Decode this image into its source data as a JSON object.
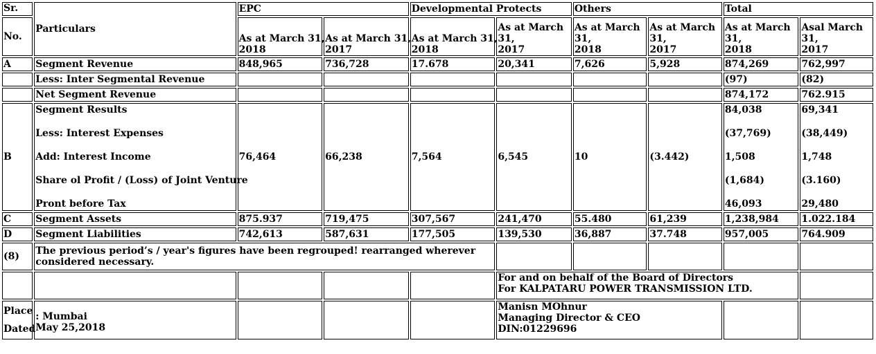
{
  "header": {
    "sr": "Sr.",
    "no": "No.",
    "particulars": "Particulars",
    "groups": [
      "EPC",
      "Developmental Protects",
      "Others",
      "Total"
    ],
    "cols": [
      [
        "As at March 31,",
        "2018"
      ],
      [
        "As at March 31,",
        "2017"
      ],
      [
        "As at March 31,",
        "2018"
      ],
      [
        "As at March",
        "31,",
        "2017"
      ],
      [
        "As at March",
        "31,",
        "2018"
      ],
      [
        "As at March",
        "31,",
        "2017"
      ],
      [
        "As at March",
        "31,",
        "2018"
      ],
      [
        "Asal March",
        "31,",
        "2017"
      ]
    ]
  },
  "rows": {
    "a": {
      "sr": "A",
      "label": "Segment Revenue",
      "values": [
        "848,965",
        "736,728",
        "17.678",
        "20,341",
        "7,626",
        "5,928",
        "874,269",
        "762,997"
      ]
    },
    "inter": {
      "label": "Less: Inter Segmental Revenue",
      "total_2018": "(97)",
      "total_2017": "(82)"
    },
    "net": {
      "label": "Net Segment Revenue",
      "total_2018": "874,172",
      "total_2017": "762.915"
    },
    "b": {
      "sr": "B",
      "labels": [
        "Segment Results",
        "Less: Interest Expenses",
        "Add: Interest Income",
        "Share ol Profit / (Loss) of Joint Venture",
        "Pront before Tax"
      ],
      "values": [
        "76,464",
        "66,238",
        "7,564",
        "6,545",
        "10",
        "(3.442)"
      ],
      "total_2018": [
        "84,038",
        "(37,769)",
        "1,508",
        "(1,684)",
        "46,093"
      ],
      "total_2017": [
        "69,341",
        "(38,449)",
        "1,748",
        "(3.160)",
        "29,480"
      ]
    },
    "c": {
      "sr": "C",
      "label": "Segment Assets",
      "values": [
        "875.937",
        "719,475",
        "307,567",
        "241,470",
        "55.480",
        "61,239",
        "1,238,984",
        "1.022.184"
      ]
    },
    "d": {
      "sr": "D",
      "label": "Segment Liabilities",
      "values": [
        "742,613",
        "587,631",
        "177,505",
        "139,530",
        "36,887",
        "37.748",
        "957,005",
        "764.909"
      ]
    },
    "note": {
      "sr": "(8)",
      "text": "The previous period’s / year's figures have been regrouped! rearranged wherever considered necessary."
    }
  },
  "footer": {
    "board_line1": "For and on behalf of the Board of Directors",
    "board_line2": "For KALPATARU POWER TRANSMISSION LTD.",
    "place_label": "Place",
    "dated_label": "Dated",
    "place_value": ": Mumbai",
    "date_value": "May 25,2018",
    "signatory_name": "Manisn MOhnur",
    "signatory_title": "Managing Director & CEO",
    "din": "DIN:01229696"
  }
}
